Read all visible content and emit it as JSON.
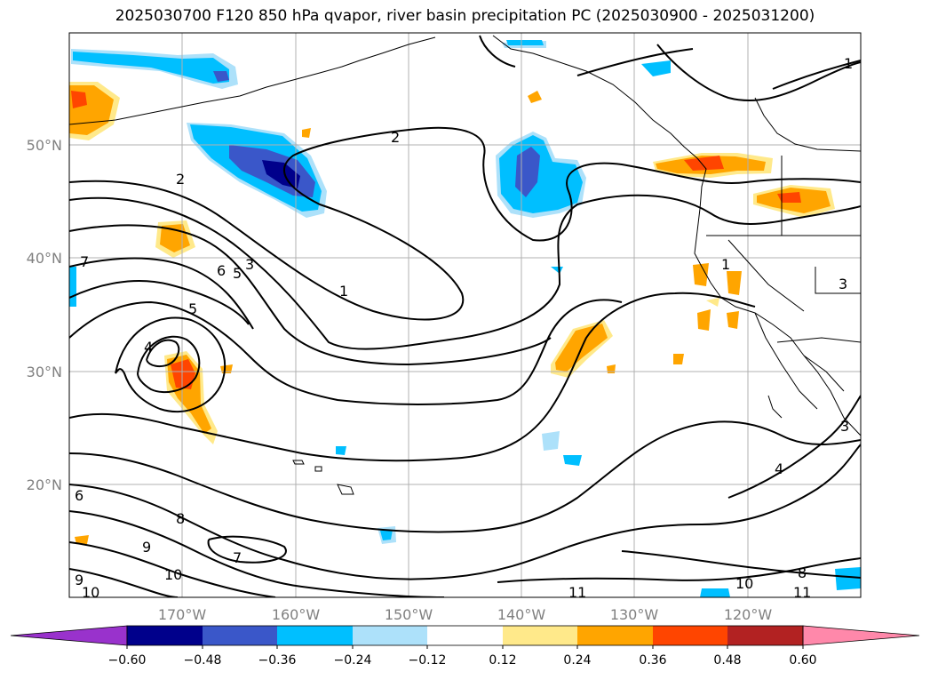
{
  "title": "2025030700 F120 850 hPa qvapor, river basin precipitation PC (2025030900 - 2025031200)",
  "lat_labels": [
    "50°N",
    "40°N",
    "30°N",
    "20°N"
  ],
  "lon_labels": [
    "170°W",
    "160°W",
    "150°W",
    "140°W",
    "130°W",
    "120°W"
  ],
  "colorbar": {
    "ticks": [
      "−0.60",
      "−0.48",
      "−0.36",
      "−0.24",
      "−0.12",
      "0.12",
      "0.24",
      "0.36",
      "0.48",
      "0.60"
    ],
    "colors": [
      "#9932CC",
      "#00008B",
      "#3A57C9",
      "#00BFFF",
      "#ADE1FA",
      "#FFFFFF",
      "#FFE98A",
      "#FFA500",
      "#FF4500",
      "#B22222",
      "#FF88AA"
    ]
  },
  "contour_labels": [
    "1",
    "2",
    "2",
    "7",
    "6",
    "5",
    "3",
    "1",
    "5",
    "4",
    "6",
    "8",
    "9",
    "7",
    "10",
    "9",
    "10",
    "11",
    "3",
    "4",
    "8",
    "10",
    "11",
    "1",
    "3"
  ],
  "colors": {
    "gridline": "#b0b0b0",
    "contour": "#000000",
    "coast": "#000000"
  }
}
